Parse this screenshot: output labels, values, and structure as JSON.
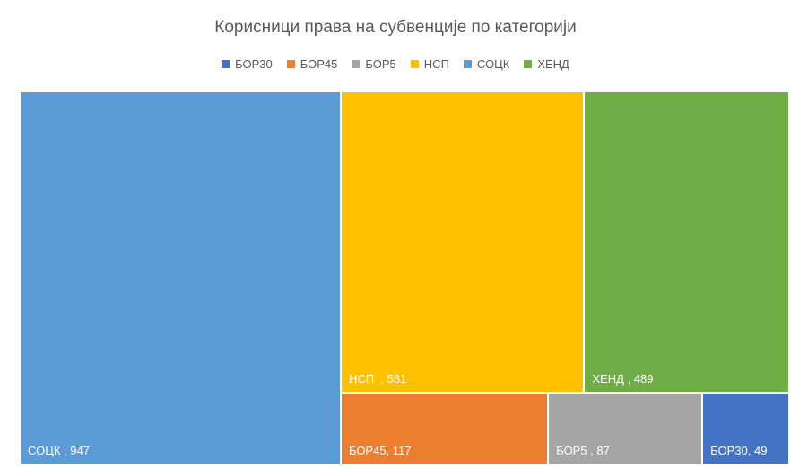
{
  "chart_data": {
    "type": "treemap",
    "title": "Корисници права на субвенције по категорији",
    "categories": [
      "БОР30",
      "БОР45",
      "БОР5",
      "НСП",
      "СОЦК",
      "ХЕНД"
    ],
    "values": [
      49,
      117,
      87,
      581,
      947,
      489
    ],
    "value_labels": [
      "БОР30, 49",
      "БОР45, 117",
      "БОР5 , 87",
      "НСП  , 581",
      "СОЦК , 947",
      "ХЕНД , 489"
    ],
    "colors": [
      "#4472c4",
      "#ed7d31",
      "#a5a5a5",
      "#ffc000",
      "#5b9bd5",
      "#70ad47"
    ],
    "legend": "top"
  }
}
